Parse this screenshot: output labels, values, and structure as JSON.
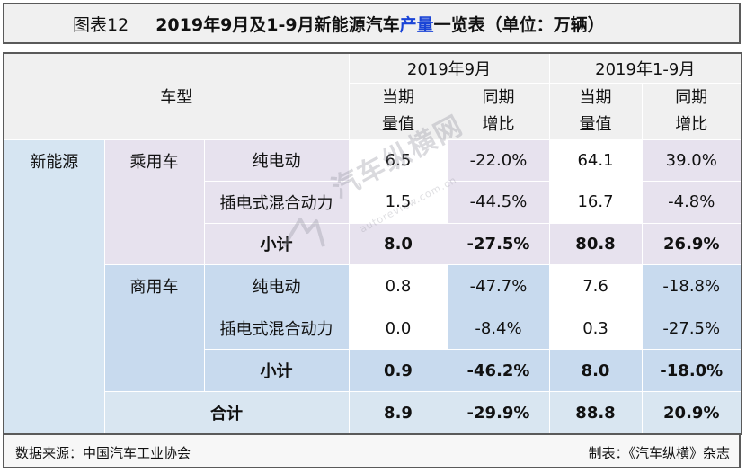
{
  "title": {
    "number": "图表12",
    "text_prefix": "2019年9月及1-9月新能源汽车",
    "text_highlight": "产量",
    "text_suffix": "一览表（单位：万辆）",
    "highlight_color": "#1a44d6"
  },
  "header": {
    "vehicle_type": "车型",
    "period_sep": "2019年9月",
    "period_jan_sep": "2019年1-9月",
    "current_value_line1": "当期",
    "current_value_line2": "量值",
    "yoy_line1": "同期",
    "yoy_line2": "增比"
  },
  "table": {
    "category": "新能源",
    "groups": [
      {
        "name": "乘用车",
        "rows": [
          {
            "type": "纯电动",
            "sep_value": "6.5",
            "sep_yoy": "-22.0%",
            "ytd_value": "64.1",
            "ytd_yoy": "39.0%"
          },
          {
            "type": "插电式混合动力",
            "sep_value": "1.5",
            "sep_yoy": "-44.5%",
            "ytd_value": "16.7",
            "ytd_yoy": "-4.8%"
          }
        ],
        "subtotal": {
          "label": "小计",
          "sep_value": "8.0",
          "sep_yoy": "-27.5%",
          "ytd_value": "80.8",
          "ytd_yoy": "26.9%"
        }
      },
      {
        "name": "商用车",
        "rows": [
          {
            "type": "纯电动",
            "sep_value": "0.8",
            "sep_yoy": "-47.7%",
            "ytd_value": "7.6",
            "ytd_yoy": "-18.8%"
          },
          {
            "type": "插电式混合动力",
            "sep_value": "0.0",
            "sep_yoy": "-8.4%",
            "ytd_value": "0.3",
            "ytd_yoy": "-27.5%"
          }
        ],
        "subtotal": {
          "label": "小计",
          "sep_value": "0.9",
          "sep_yoy": "-46.2%",
          "ytd_value": "8.0",
          "ytd_yoy": "-18.0%"
        }
      }
    ],
    "total": {
      "label": "合计",
      "sep_value": "8.9",
      "sep_yoy": "-29.9%",
      "ytd_value": "88.8",
      "ytd_yoy": "20.9%"
    }
  },
  "footer": {
    "source": "数据来源：中国汽车工业协会",
    "maker": "制表：《汽车纵横》杂志"
  },
  "watermark": {
    "text": "汽车纵横网",
    "url": "autoreview.com.cn"
  },
  "colors": {
    "negative": "#ee1c1c",
    "header_bg": "#f0f0f0",
    "blue_bg": "#d6e5f2",
    "lavender_bg": "#e7e2ee"
  }
}
